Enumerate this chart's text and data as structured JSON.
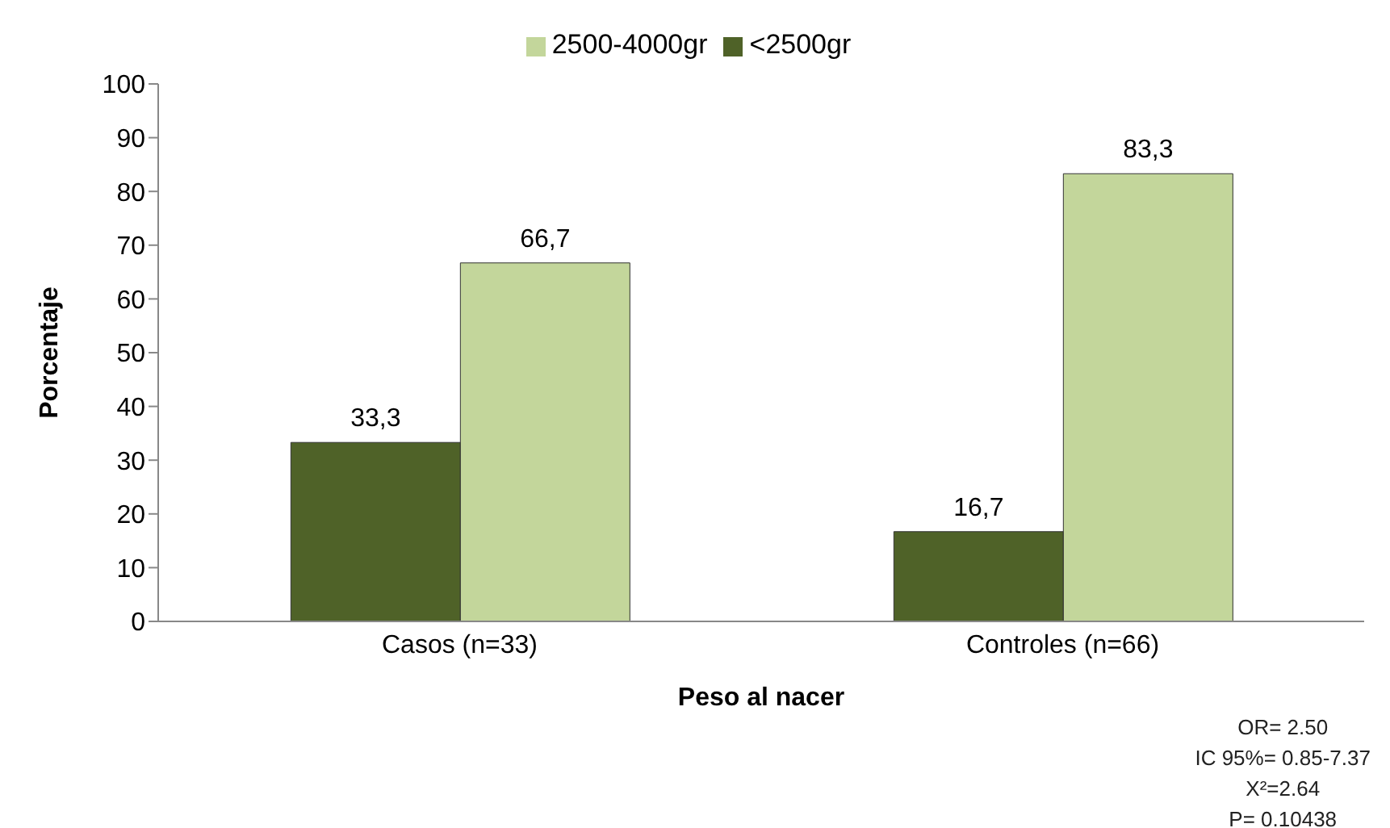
{
  "chart_data": {
    "type": "bar",
    "xlabel": "Peso al nacer",
    "ylabel": "Porcentaje",
    "categories": [
      "Casos (n=33)",
      "Controles (n=66)"
    ],
    "series": [
      {
        "name": "<2500gr",
        "color": "#4f6228",
        "values": [
          33.3,
          16.7
        ],
        "value_labels": [
          "33,3",
          "16,7"
        ]
      },
      {
        "name": "2500-4000gr",
        "color": "#c3d69b",
        "values": [
          66.7,
          83.3
        ],
        "value_labels": [
          "66,7",
          "83,3"
        ]
      }
    ],
    "ylim": [
      0,
      100
    ],
    "yticks": [
      0,
      10,
      20,
      30,
      40,
      50,
      60,
      70,
      80,
      90,
      100
    ],
    "grid": false,
    "legend": "top",
    "annotations": [
      "OR= 2.50",
      "IC 95%= 0.85-7.37",
      "X²=2.64",
      "P= 0.10438"
    ]
  }
}
